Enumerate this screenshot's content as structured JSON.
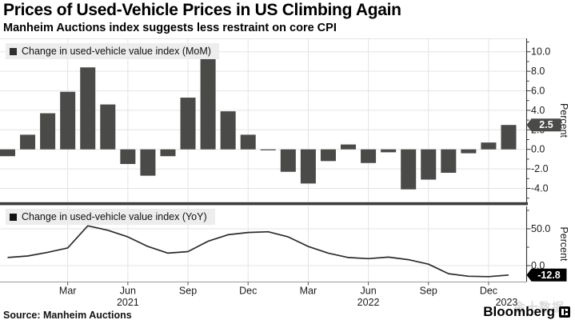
{
  "header": {
    "title": "Prices of Used-Vehicle Prices in US Climbing Again",
    "subtitle": "Manheim Auctions index suggests less restraint on core CPI"
  },
  "footer": {
    "source_label": "Source: Manheim Auctions",
    "brand": "Bloomberg",
    "watermark": "金十数据"
  },
  "colors": {
    "bar": "#4a4a48",
    "line": "#2b2b2b",
    "grid": "#e3e3e3",
    "axis": "#333333",
    "separator": "#3c3c3c",
    "mom_badge_bg": "#4a4a48",
    "yoy_badge_bg": "#000000",
    "badge_text": "#ffffff",
    "legend_swatch_mom": "#2f2f2f",
    "legend_swatch_yoy": "#111111"
  },
  "chart_data": [
    {
      "type": "bar",
      "title": "Change in used-vehicle value index (MoM)",
      "ylabel": "Percent",
      "ylim": [
        -5.4,
        11.4
      ],
      "grid": true,
      "legend_position": "top-left",
      "categories": [
        "Dec 2020",
        "Jan 2021",
        "Feb 2021",
        "Mar 2021",
        "Apr 2021",
        "May 2021",
        "Jun 2021",
        "Jul 2021",
        "Aug 2021",
        "Sep 2021",
        "Oct 2021",
        "Nov 2021",
        "Dec 2021",
        "Jan 2022",
        "Feb 2022",
        "Mar 2022",
        "Apr 2022",
        "May 2022",
        "Jun 2022",
        "Jul 2022",
        "Aug 2022",
        "Sep 2022",
        "Oct 2022",
        "Nov 2022",
        "Dec 2022",
        "Jan 2023"
      ],
      "values": [
        -0.7,
        1.5,
        3.7,
        5.9,
        8.4,
        4.6,
        -1.5,
        -2.7,
        -0.7,
        5.3,
        9.3,
        3.9,
        1.5,
        -0.1,
        -2.3,
        -3.5,
        -1.2,
        0.5,
        -1.4,
        -0.3,
        -4.1,
        -3.1,
        -2.4,
        -0.4,
        0.7,
        2.5
      ],
      "y_axis": {
        "label": "Percent",
        "ticks": [
          {
            "v": 10,
            "t": "10.0"
          },
          {
            "v": 8,
            "t": "8.0"
          },
          {
            "v": 6,
            "t": "6.0"
          },
          {
            "v": 4,
            "t": "4.0"
          },
          {
            "v": 2,
            "t": "2.0"
          },
          {
            "v": 0,
            "t": "0.0"
          },
          {
            "v": -2,
            "t": "-2.0"
          },
          {
            "v": -4,
            "t": "-4.0"
          }
        ],
        "minor": [
          11,
          9,
          7,
          5,
          3,
          1,
          -1,
          -3,
          -5
        ]
      },
      "x_axis": {
        "tick_indices": [
          3,
          6,
          9,
          12,
          15,
          18,
          21,
          24
        ],
        "tick_labels": [
          "Mar",
          "Jun",
          "Sep",
          "Dec",
          "Mar",
          "Jun",
          "Sep",
          "Dec"
        ],
        "years": [
          {
            "label": "2021",
            "index": 6
          },
          {
            "label": "2022",
            "index": 18
          },
          {
            "label": "2023",
            "index": 24.9
          }
        ]
      },
      "current_value_badge": {
        "value": 2.5,
        "label": "2.5"
      }
    },
    {
      "type": "line",
      "title": "Change in used-vehicle value index (YoY)",
      "ylabel": "Percent",
      "ylim": [
        -21.7,
        80.4
      ],
      "grid": true,
      "legend_position": "top-left",
      "categories": [
        "Dec 2020",
        "Jan 2021",
        "Feb 2021",
        "Mar 2021",
        "Apr 2021",
        "May 2021",
        "Jun 2021",
        "Jul 2021",
        "Aug 2021",
        "Sep 2021",
        "Oct 2021",
        "Nov 2021",
        "Dec 2021",
        "Jan 2022",
        "Feb 2022",
        "Mar 2022",
        "Apr 2022",
        "May 2022",
        "Jun 2022",
        "Jul 2022",
        "Aug 2022",
        "Sep 2022",
        "Oct 2022",
        "Nov 2022",
        "Dec 2022",
        "Jan 2023"
      ],
      "values": [
        11,
        13,
        18,
        24,
        54,
        48,
        39,
        26,
        17,
        19,
        33,
        42,
        45,
        46,
        39,
        26,
        17,
        11,
        9.5,
        11.5,
        8,
        2,
        -11,
        -14.5,
        -15,
        -12.8
      ],
      "y_axis": {
        "label": "Percent",
        "ticks": [
          {
            "v": 50,
            "t": "50.0"
          },
          {
            "v": 0,
            "t": "0.0"
          }
        ],
        "minor": [
          75,
          25
        ]
      },
      "current_value_badge": {
        "value": -12.8,
        "label": "-12.8"
      }
    }
  ]
}
